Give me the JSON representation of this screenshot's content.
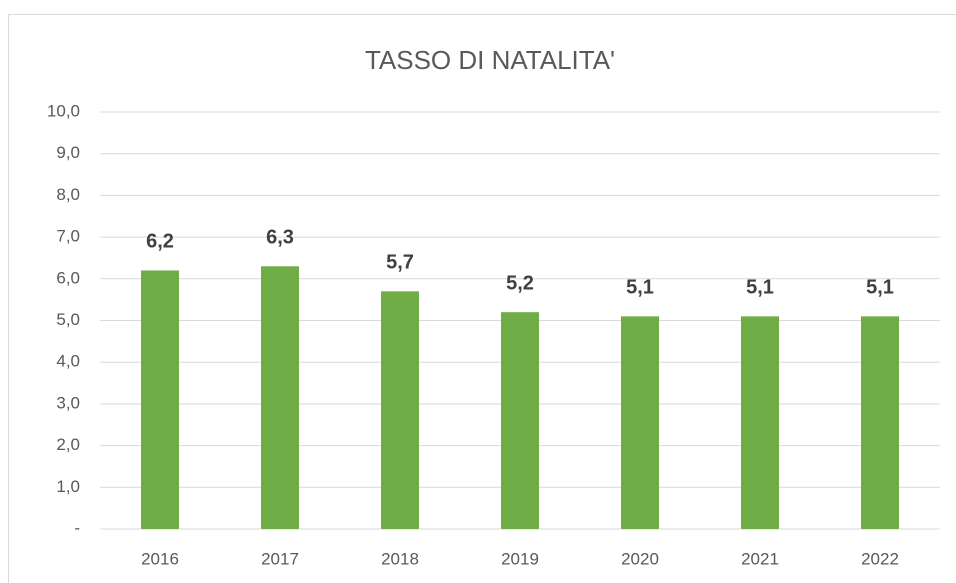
{
  "chart_data": {
    "type": "bar",
    "title": "TASSO DI NATALITA'",
    "categories": [
      "2016",
      "2017",
      "2018",
      "2019",
      "2020",
      "2021",
      "2022"
    ],
    "values": [
      6.2,
      6.3,
      5.7,
      5.2,
      5.1,
      5.1,
      5.1
    ],
    "value_labels": [
      "6,2",
      "6,3",
      "5,7",
      "5,2",
      "5,1",
      "5,1",
      "5,1"
    ],
    "color": "#70ad47",
    "ylim": [
      0,
      10
    ],
    "yticks": [
      {
        "value": 0,
        "label": "-"
      },
      {
        "value": 1,
        "label": "1,0"
      },
      {
        "value": 2,
        "label": "2,0"
      },
      {
        "value": 3,
        "label": "3,0"
      },
      {
        "value": 4,
        "label": "4,0"
      },
      {
        "value": 5,
        "label": "5,0"
      },
      {
        "value": 6,
        "label": "6,0"
      },
      {
        "value": 7,
        "label": "7,0"
      },
      {
        "value": 8,
        "label": "8,0"
      },
      {
        "value": 9,
        "label": "9,0"
      },
      {
        "value": 10,
        "label": "10,0"
      }
    ],
    "grid": true
  }
}
